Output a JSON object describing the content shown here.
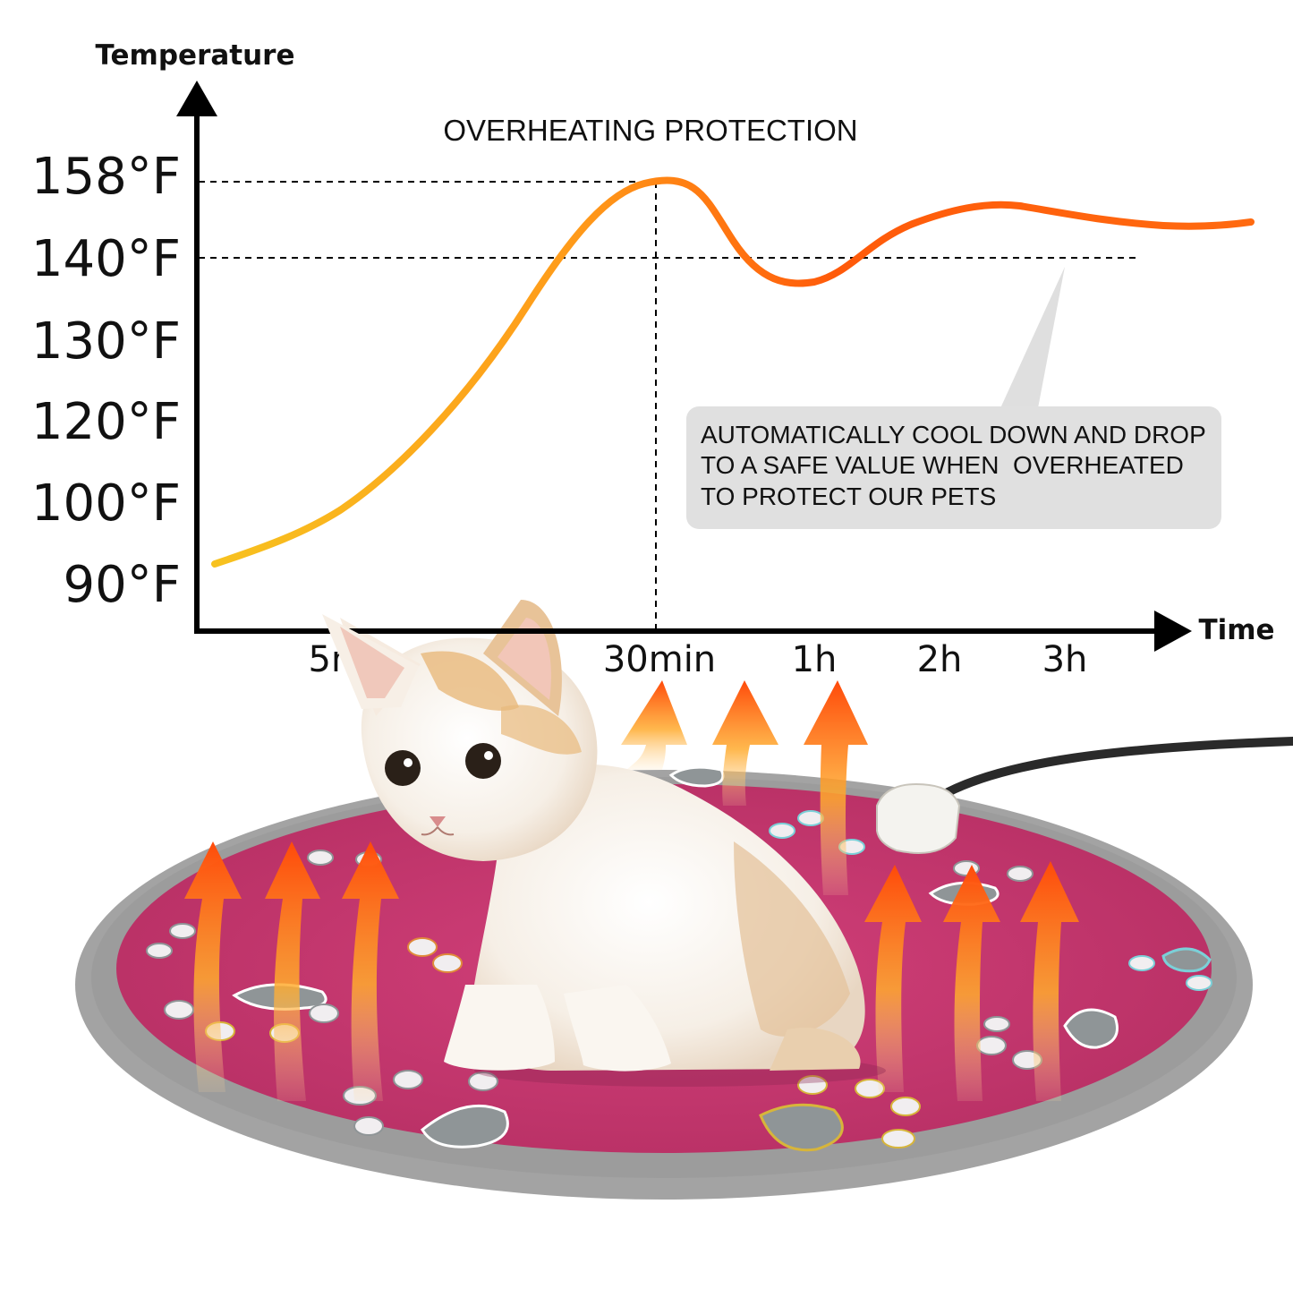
{
  "chart_data": {
    "type": "line",
    "title": "OVERHEATING PROTECTION",
    "ylabel": "Temperature",
    "xlabel": "Time",
    "y_ticks": [
      "158°F",
      "140°F",
      "130°F",
      "120°F",
      "100°F",
      "90°F"
    ],
    "x_ticks": [
      "5min",
      "30min",
      "1h",
      "2h",
      "3h"
    ],
    "series": [
      {
        "points": [
          {
            "t": "start",
            "temp": 90
          },
          {
            "t": "5min",
            "temp": 98
          },
          {
            "t": "15min",
            "temp": 118
          },
          {
            "t": "25min",
            "temp": 140
          },
          {
            "t": "30min",
            "temp": 158
          },
          {
            "t": "45min",
            "temp": 141
          },
          {
            "t": "1h",
            "temp": 137
          },
          {
            "t": "2h",
            "temp": 145
          },
          {
            "t": "3h",
            "temp": 147
          },
          {
            "t": "end",
            "temp": 143
          }
        ]
      }
    ],
    "reference_lines": [
      {
        "axis": "y",
        "value": "158°F",
        "style": "dashed"
      },
      {
        "axis": "y",
        "value": "140°F",
        "style": "dashed"
      },
      {
        "axis": "x",
        "value": "30min",
        "style": "dashed"
      }
    ],
    "annotation": {
      "lines": [
        "AUTOMATICALLY COOL DOWN AND DROP",
        "TO A SAFE VALUE WHEN  OVERHEATED",
        "TO PROTECT OUR PETS"
      ]
    },
    "colors": {
      "curve_start": "#f7c21f",
      "curve_end": "#ff4d0a",
      "axis": "#000000",
      "callout_bg": "#e0e0e0",
      "mat": "#c8376d",
      "mat_rim": "#9c9c9c",
      "arrow": "#ff6a0f"
    }
  }
}
